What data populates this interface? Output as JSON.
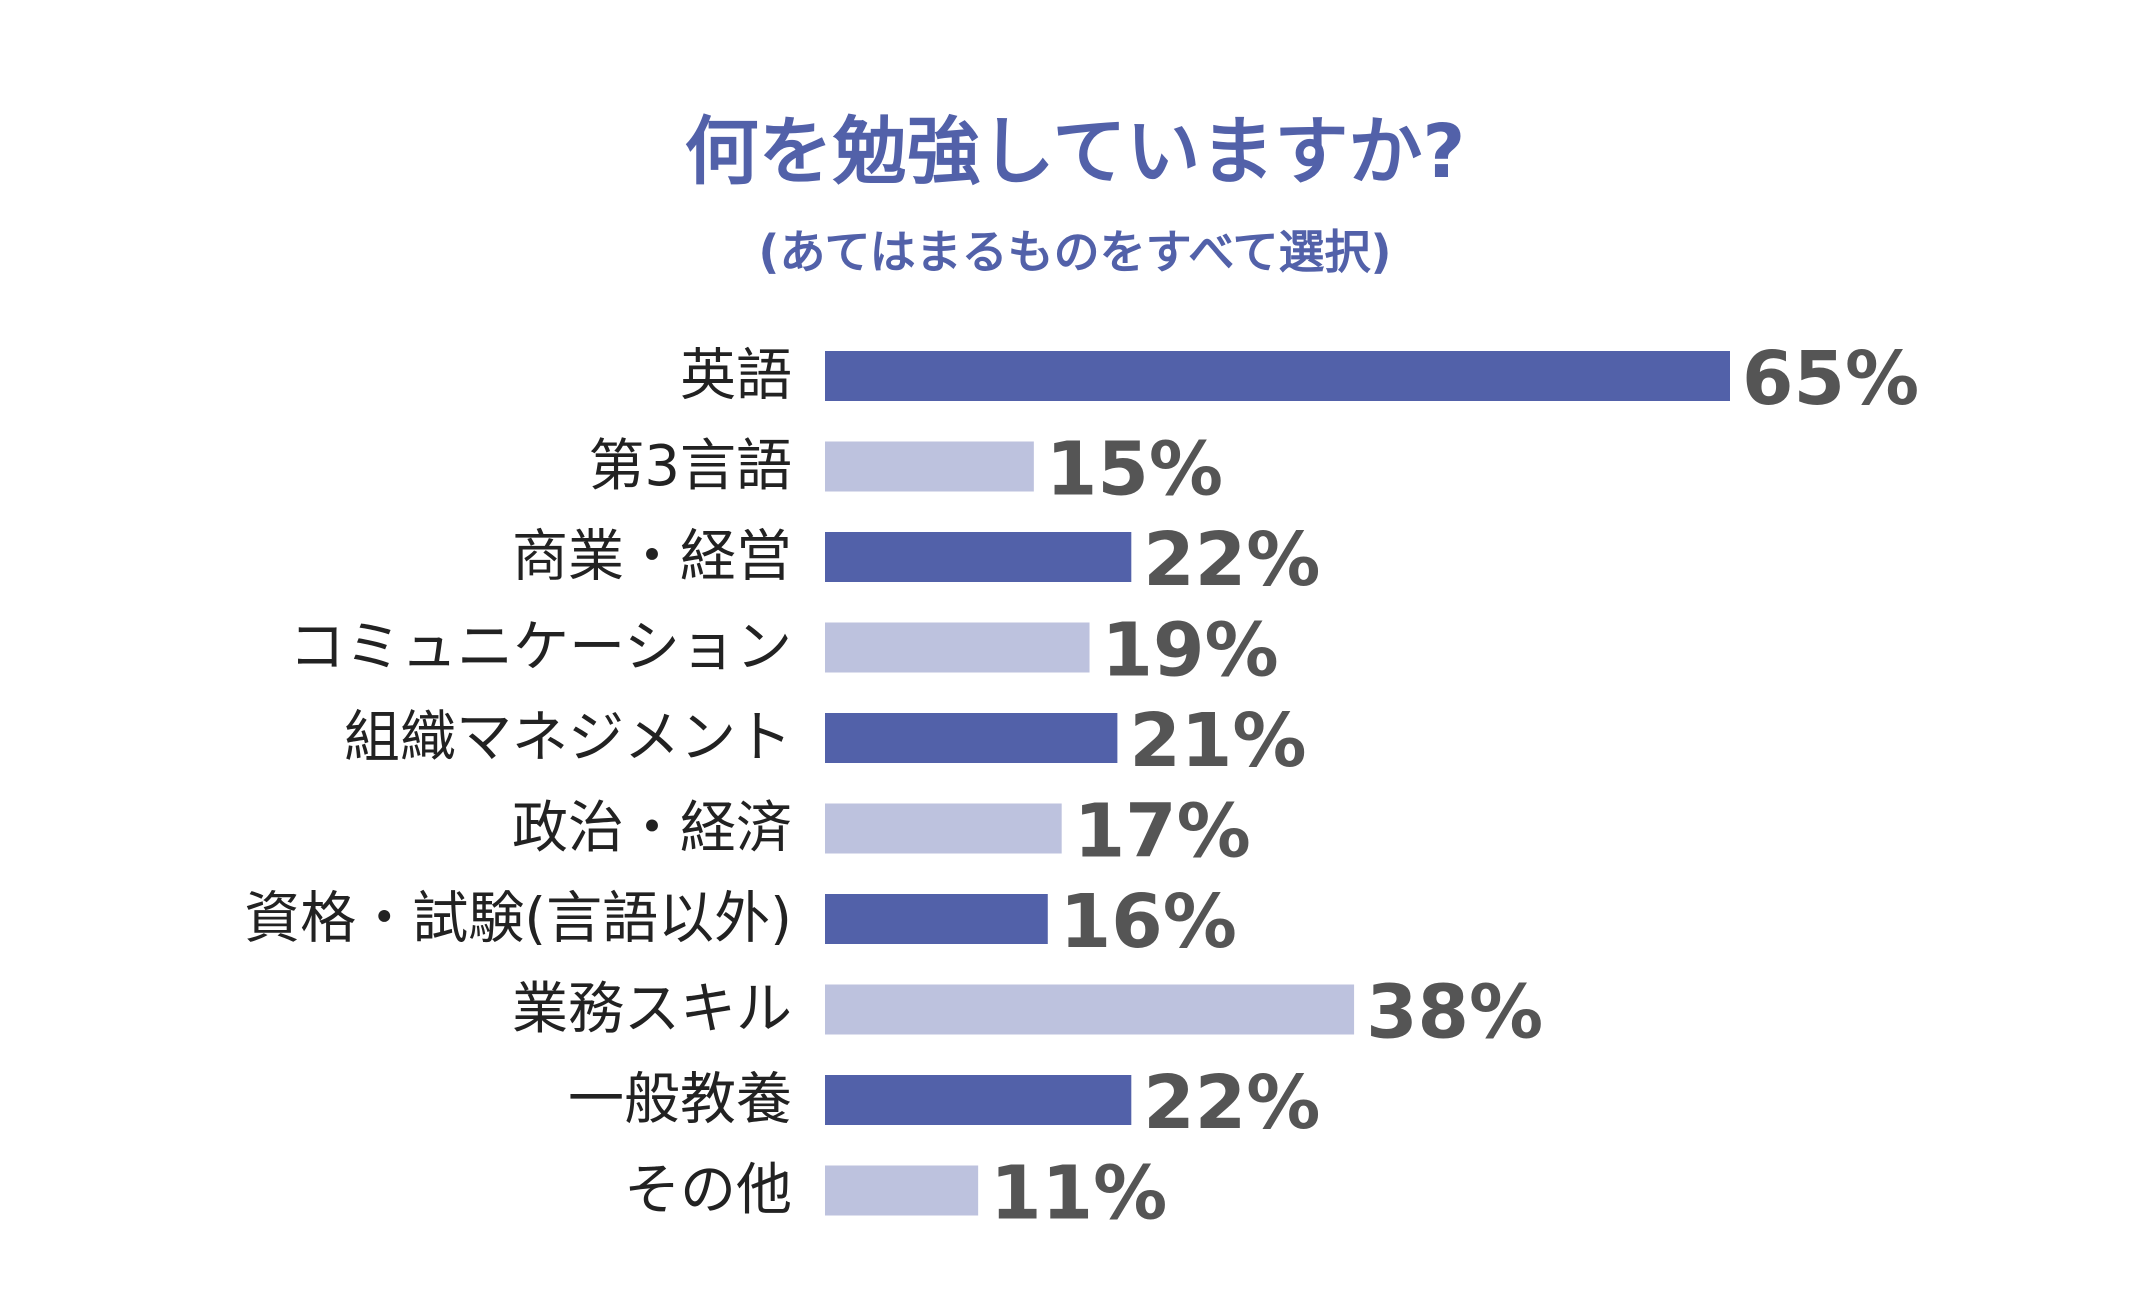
{
  "chart_data": {
    "type": "bar",
    "orientation": "horizontal",
    "title": "何を勉強していますか?",
    "subtitle": "(あてはまるものをすべて選択)",
    "categories": [
      "英語",
      "第3言語",
      "商業・経営",
      "コミュニケーション",
      "組織マネジメント",
      "政治・経済",
      "資格・試験(言語以外)",
      "業務スキル",
      "一般教養",
      "その他"
    ],
    "values": [
      65,
      15,
      22,
      19,
      21,
      17,
      16,
      38,
      22,
      11
    ],
    "value_labels": [
      "65%",
      "15%",
      "22%",
      "19%",
      "21%",
      "17%",
      "16%",
      "38%",
      "22%",
      "11%"
    ],
    "unit": "%",
    "xlim": [
      0,
      100
    ],
    "grid": false,
    "legend": "none",
    "colors": {
      "bar_dark": "#5261a9",
      "bar_light": "#bdc2de",
      "title": "#5261a9",
      "value_text": "#555555",
      "category_text": "#222222"
    }
  }
}
